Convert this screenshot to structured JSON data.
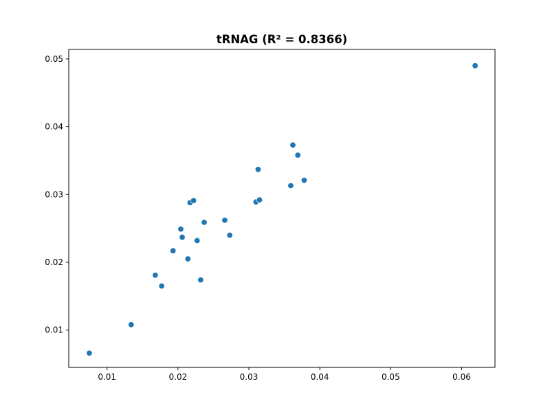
{
  "chart_data": {
    "type": "scatter",
    "title": "tRNAG (R² = 0.8366)",
    "xlabel": "",
    "ylabel": "",
    "xlim": [
      0.0046,
      0.0647
    ],
    "ylim": [
      0.0045,
      0.0514
    ],
    "x_ticks": [
      0.01,
      0.02,
      0.03,
      0.04,
      0.05,
      0.06
    ],
    "y_ticks": [
      0.01,
      0.02,
      0.03,
      0.04,
      0.05
    ],
    "x_tick_labels": [
      "0.01",
      "0.02",
      "0.03",
      "0.04",
      "0.05",
      "0.06"
    ],
    "y_tick_labels": [
      "0.01",
      "0.02",
      "0.03",
      "0.04",
      "0.05"
    ],
    "grid": false,
    "marker_color": "#1f77b4",
    "points": [
      {
        "x": 0.0075,
        "y": 0.0066
      },
      {
        "x": 0.0134,
        "y": 0.0108
      },
      {
        "x": 0.0168,
        "y": 0.0181
      },
      {
        "x": 0.0177,
        "y": 0.0165
      },
      {
        "x": 0.0193,
        "y": 0.0217
      },
      {
        "x": 0.0204,
        "y": 0.0249
      },
      {
        "x": 0.0206,
        "y": 0.0237
      },
      {
        "x": 0.0214,
        "y": 0.0205
      },
      {
        "x": 0.0217,
        "y": 0.0288
      },
      {
        "x": 0.0222,
        "y": 0.0291
      },
      {
        "x": 0.0227,
        "y": 0.0232
      },
      {
        "x": 0.0232,
        "y": 0.0174
      },
      {
        "x": 0.0237,
        "y": 0.0259
      },
      {
        "x": 0.0266,
        "y": 0.0262
      },
      {
        "x": 0.0273,
        "y": 0.024
      },
      {
        "x": 0.031,
        "y": 0.0289
      },
      {
        "x": 0.0313,
        "y": 0.0337
      },
      {
        "x": 0.0315,
        "y": 0.0292
      },
      {
        "x": 0.0359,
        "y": 0.0313
      },
      {
        "x": 0.0362,
        "y": 0.0373
      },
      {
        "x": 0.0369,
        "y": 0.0358
      },
      {
        "x": 0.0378,
        "y": 0.0321
      },
      {
        "x": 0.0619,
        "y": 0.049
      }
    ]
  }
}
